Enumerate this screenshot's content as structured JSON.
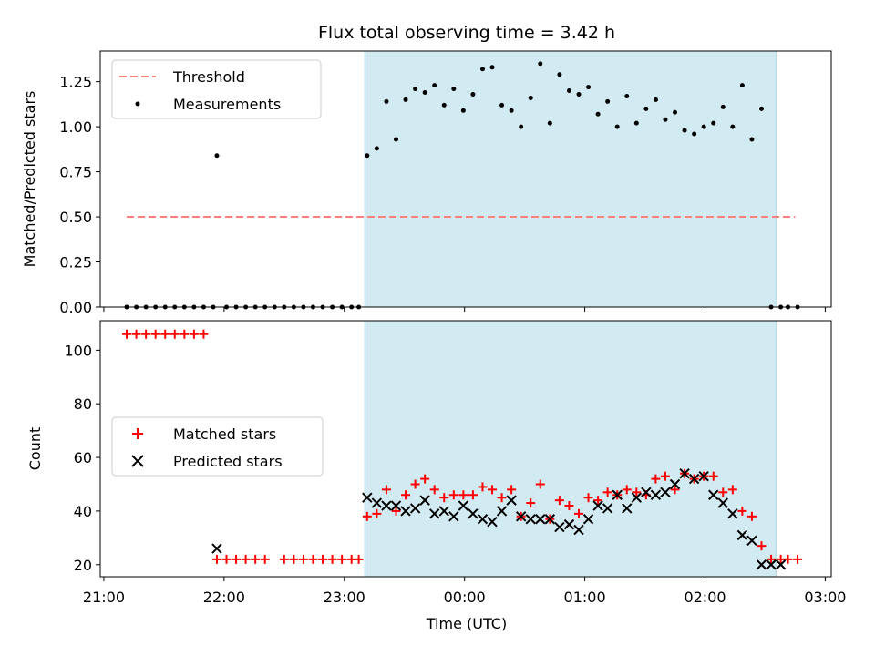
{
  "chart_data": {
    "type": "scatter",
    "title": "Flux total observing time = 3.42 h",
    "x_unit": "hours since 21:00 UTC",
    "xlabel": "Time (UTC)",
    "xlim": [
      -0.03,
      6.05
    ],
    "x_ticks": [
      {
        "value": 0,
        "label": "21:00"
      },
      {
        "value": 1,
        "label": "22:00"
      },
      {
        "value": 2,
        "label": "23:00"
      },
      {
        "value": 3,
        "label": "00:00"
      },
      {
        "value": 4,
        "label": "01:00"
      },
      {
        "value": 5,
        "label": "02:00"
      },
      {
        "value": 6,
        "label": "03:00"
      }
    ],
    "observing_window": {
      "start": 2.17,
      "end": 5.59,
      "color": "#add8e6"
    },
    "top_panel": {
      "ylabel": "Matched/Predicted stars",
      "ylim": [
        0,
        1.42
      ],
      "y_ticks": [
        "0.00",
        "0.25",
        "0.50",
        "0.75",
        "1.00",
        "1.25"
      ],
      "y_tick_values": [
        0,
        0.25,
        0.5,
        0.75,
        1.0,
        1.25
      ],
      "legend_position": "upper-left",
      "threshold": {
        "name": "Threshold",
        "value": 0.5,
        "x_start": 0.19,
        "x_end": 5.75,
        "color": "#ff7f7f"
      },
      "measurements": {
        "name": "Measurements",
        "color": "#000000",
        "x": [
          0.19,
          0.27,
          0.35,
          0.43,
          0.51,
          0.59,
          0.67,
          0.75,
          0.83,
          0.91,
          0.94,
          1.02,
          1.1,
          1.18,
          1.26,
          1.34,
          1.42,
          1.5,
          1.58,
          1.66,
          1.74,
          1.82,
          1.9,
          1.98,
          2.06,
          2.12,
          2.19,
          2.27,
          2.35,
          2.43,
          2.51,
          2.59,
          2.67,
          2.75,
          2.83,
          2.91,
          2.99,
          3.07,
          3.15,
          3.23,
          3.31,
          3.39,
          3.47,
          3.55,
          3.63,
          3.71,
          3.79,
          3.87,
          3.95,
          4.03,
          4.11,
          4.19,
          4.27,
          4.35,
          4.43,
          4.51,
          4.59,
          4.67,
          4.75,
          4.83,
          4.91,
          4.99,
          5.07,
          5.15,
          5.23,
          5.31,
          5.39,
          5.47,
          5.55,
          5.63,
          5.69,
          5.77
        ],
        "y": [
          0,
          0,
          0,
          0,
          0,
          0,
          0,
          0,
          0,
          0,
          0.84,
          0,
          0,
          0,
          0,
          0,
          0,
          0,
          0,
          0,
          0,
          0,
          0,
          0,
          0,
          0,
          0.84,
          0.88,
          1.14,
          0.93,
          1.15,
          1.21,
          1.19,
          1.23,
          1.12,
          1.21,
          1.09,
          1.18,
          1.32,
          1.33,
          1.12,
          1.09,
          1.0,
          1.16,
          1.35,
          1.02,
          1.29,
          1.2,
          1.18,
          1.22,
          1.07,
          1.14,
          1.0,
          1.17,
          1.02,
          1.1,
          1.15,
          1.04,
          1.08,
          0.98,
          0.96,
          1.0,
          1.02,
          1.11,
          1.0,
          1.23,
          0.93,
          1.1,
          0,
          0,
          0,
          0
        ]
      }
    },
    "bottom_panel": {
      "ylabel": "Count",
      "ylim": [
        15.5,
        111
      ],
      "y_ticks": [
        "20",
        "40",
        "60",
        "80",
        "100"
      ],
      "y_tick_values": [
        20,
        40,
        60,
        80,
        100
      ],
      "legend_position": "center-left",
      "series": [
        {
          "name": "Matched stars",
          "marker": "+",
          "color": "#ff0000",
          "x": [
            0.19,
            0.27,
            0.35,
            0.43,
            0.51,
            0.59,
            0.67,
            0.75,
            0.83,
            0.94,
            1.02,
            1.1,
            1.18,
            1.26,
            1.34,
            1.5,
            1.58,
            1.66,
            1.74,
            1.82,
            1.9,
            1.98,
            2.06,
            2.12,
            2.19,
            2.27,
            2.35,
            2.43,
            2.51,
            2.59,
            2.67,
            2.75,
            2.83,
            2.91,
            2.99,
            3.07,
            3.15,
            3.23,
            3.31,
            3.39,
            3.47,
            3.55,
            3.63,
            3.71,
            3.79,
            3.87,
            3.95,
            4.03,
            4.11,
            4.19,
            4.27,
            4.35,
            4.43,
            4.51,
            4.59,
            4.67,
            4.75,
            4.83,
            4.91,
            4.99,
            5.07,
            5.15,
            5.23,
            5.31,
            5.39,
            5.47,
            5.55,
            5.63,
            5.69,
            5.77
          ],
          "y": [
            106,
            106,
            106,
            106,
            106,
            106,
            106,
            106,
            106,
            22,
            22,
            22,
            22,
            22,
            22,
            22,
            22,
            22,
            22,
            22,
            22,
            22,
            22,
            22,
            38,
            39,
            48,
            40,
            46,
            50,
            52,
            48,
            45,
            46,
            46,
            46,
            49,
            48,
            45,
            48,
            38,
            43,
            50,
            37,
            44,
            42,
            39,
            45,
            44,
            47,
            46,
            48,
            47,
            46,
            52,
            53,
            48,
            54,
            52,
            53,
            53,
            47,
            48,
            40,
            38,
            27,
            22,
            22,
            22,
            22
          ]
        },
        {
          "name": "Predicted stars",
          "marker": "x",
          "color": "#000000",
          "x": [
            0.94,
            2.19,
            2.27,
            2.35,
            2.43,
            2.51,
            2.59,
            2.67,
            2.75,
            2.83,
            2.91,
            2.99,
            3.07,
            3.15,
            3.23,
            3.31,
            3.39,
            3.47,
            3.55,
            3.63,
            3.71,
            3.79,
            3.87,
            3.95,
            4.03,
            4.11,
            4.19,
            4.27,
            4.35,
            4.43,
            4.51,
            4.59,
            4.67,
            4.75,
            4.83,
            4.91,
            4.99,
            5.07,
            5.15,
            5.23,
            5.31,
            5.39,
            5.47,
            5.55,
            5.63
          ],
          "y": [
            26,
            45,
            43,
            42,
            42,
            40,
            41,
            44,
            39,
            40,
            38,
            42,
            39,
            37,
            36,
            40,
            44,
            38,
            37,
            37,
            37,
            34,
            35,
            33,
            37,
            42,
            41,
            46,
            41,
            45,
            47,
            46,
            47,
            50,
            54,
            52,
            53,
            46,
            43,
            39,
            31,
            29,
            20,
            20,
            20
          ]
        }
      ]
    }
  }
}
